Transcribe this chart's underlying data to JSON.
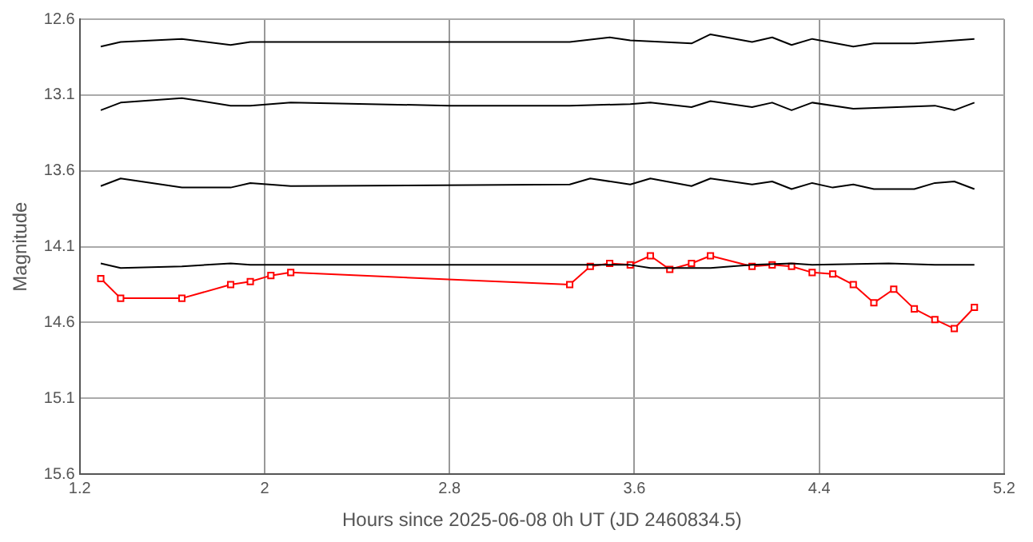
{
  "chart_data": {
    "type": "line",
    "xlabel": "Hours since 2025-06-08 0h UT (JD 2460834.5)",
    "ylabel": "Magnitude",
    "xlim": [
      1.2,
      5.2
    ],
    "xticks": [
      1.2,
      2,
      2.8,
      3.6,
      4.4,
      5.2
    ],
    "ylim": [
      15.6,
      12.6
    ],
    "yticks": [
      12.6,
      13.1,
      13.6,
      14.1,
      14.6,
      15.1,
      15.6
    ],
    "grid": true,
    "legend": false,
    "line_style": "solid",
    "series": [
      {
        "color": "#000000",
        "marker": "none",
        "x": [
          1.291,
          1.377,
          1.642,
          1.853,
          1.938,
          2.8,
          3.32,
          3.493,
          3.582,
          3.847,
          3.929,
          4.109,
          4.196,
          4.28,
          4.369,
          4.547,
          4.636,
          4.811,
          5.071
        ],
        "values": [
          12.78,
          12.75,
          12.73,
          12.77,
          12.75,
          12.75,
          12.75,
          12.72,
          12.74,
          12.76,
          12.7,
          12.75,
          12.72,
          12.77,
          12.73,
          12.78,
          12.76,
          12.76,
          12.73
        ]
      },
      {
        "color": "#000000",
        "marker": "none",
        "x": [
          1.291,
          1.377,
          1.642,
          1.853,
          1.938,
          2.113,
          2.8,
          3.32,
          3.582,
          3.669,
          3.847,
          3.929,
          4.109,
          4.196,
          4.28,
          4.369,
          4.547,
          4.9,
          4.984,
          5.071
        ],
        "values": [
          13.2,
          13.15,
          13.12,
          13.17,
          13.17,
          13.15,
          13.17,
          13.17,
          13.16,
          13.15,
          13.18,
          13.14,
          13.18,
          13.15,
          13.2,
          13.15,
          13.19,
          13.17,
          13.2,
          13.15
        ]
      },
      {
        "color": "#000000",
        "marker": "none",
        "x": [
          1.291,
          1.377,
          1.642,
          1.853,
          1.938,
          2.113,
          3.32,
          3.409,
          3.582,
          3.669,
          3.847,
          3.929,
          4.109,
          4.196,
          4.28,
          4.369,
          4.458,
          4.547,
          4.636,
          4.811,
          4.9,
          4.984,
          5.071
        ],
        "values": [
          13.7,
          13.65,
          13.71,
          13.71,
          13.68,
          13.7,
          13.69,
          13.65,
          13.69,
          13.65,
          13.7,
          13.65,
          13.69,
          13.67,
          13.72,
          13.68,
          13.71,
          13.69,
          13.72,
          13.72,
          13.68,
          13.67,
          13.72
        ]
      },
      {
        "color": "#000000",
        "marker": "none",
        "x": [
          1.291,
          1.377,
          1.642,
          1.853,
          1.938,
          2.113,
          2.8,
          3.32,
          3.582,
          3.669,
          3.929,
          4.109,
          4.28,
          4.369,
          4.7,
          4.9,
          5.071
        ],
        "values": [
          14.21,
          14.24,
          14.23,
          14.21,
          14.22,
          14.22,
          14.22,
          14.22,
          14.22,
          14.24,
          14.24,
          14.22,
          14.21,
          14.22,
          14.21,
          14.22,
          14.22
        ]
      },
      {
        "color": "#ff0000",
        "marker": "square",
        "x": [
          1.291,
          1.377,
          1.642,
          1.853,
          1.938,
          2.027,
          2.113,
          3.32,
          3.409,
          3.493,
          3.582,
          3.669,
          3.753,
          3.847,
          3.929,
          4.109,
          4.196,
          4.28,
          4.369,
          4.458,
          4.547,
          4.636,
          4.722,
          4.811,
          4.9,
          4.984,
          5.071
        ],
        "values": [
          14.31,
          14.44,
          14.44,
          14.35,
          14.33,
          14.29,
          14.27,
          14.35,
          14.23,
          14.21,
          14.22,
          14.16,
          14.25,
          14.21,
          14.16,
          14.23,
          14.22,
          14.23,
          14.27,
          14.28,
          14.35,
          14.47,
          14.38,
          14.51,
          14.58,
          14.64,
          14.5
        ]
      }
    ]
  }
}
